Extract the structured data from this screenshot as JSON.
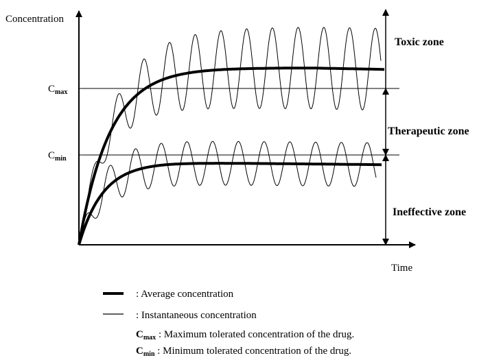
{
  "axes": {
    "y_label": "Concentration",
    "x_label": "Time"
  },
  "levels": {
    "cmax": {
      "symbol": "C",
      "subscript": "max"
    },
    "cmin": {
      "symbol": "C",
      "subscript": "min"
    }
  },
  "zones": [
    "Toxic zone",
    "Therapeutic zone",
    "Ineffective zone"
  ],
  "legend": {
    "average": ": Average concentration",
    "instantaneous": ": Instantaneous concentration",
    "cmax": {
      "symbol": "C",
      "subscript": "max",
      "text": " : Maximum tolerated concentration of the drug."
    },
    "cmin": {
      "symbol": "C",
      "subscript": "min",
      "text": " : Minimum tolerated concentration of the drug."
    }
  }
}
